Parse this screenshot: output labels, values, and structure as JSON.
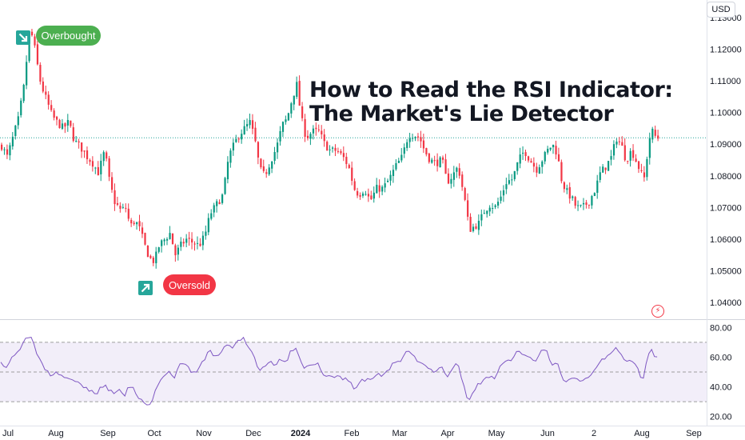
{
  "title": {
    "line1": "How to Read the RSI Indicator:",
    "line2": "The Market's Lie Detector"
  },
  "currency_label": "USD",
  "annotations": {
    "overbought": "Overbought",
    "oversold": "Oversold"
  },
  "colors": {
    "up": "#089981",
    "down": "#f23645",
    "rsi_line": "#7e57c2",
    "rsi_band": "#ede7f6",
    "overbought_badge": "#4caf50",
    "oversold_badge": "#f23645",
    "arrow_badge": "#26a69a",
    "last_price_line": "#26a69a"
  },
  "icons": {
    "overbought_arrow": "arrow-down-right-icon",
    "oversold_arrow": "arrow-up-right-icon",
    "logo": "lightning-logo-icon"
  },
  "chart_data": [
    {
      "type": "candlestick",
      "title": "",
      "xlabel": "",
      "ylabel": "",
      "ylim": [
        1.035,
        1.135
      ],
      "y_ticks": [
        "1.13000",
        "1.12000",
        "1.11000",
        "1.10000",
        "1.09000",
        "1.08000",
        "1.07000",
        "1.06000",
        "1.05000",
        "1.04000"
      ],
      "x_ticks": [
        {
          "label": "Jul",
          "bold": false
        },
        {
          "label": "Aug",
          "bold": false
        },
        {
          "label": "Sep",
          "bold": false
        },
        {
          "label": "Oct",
          "bold": false
        },
        {
          "label": "Nov",
          "bold": false
        },
        {
          "label": "Dec",
          "bold": false
        },
        {
          "label": "2024",
          "bold": true
        },
        {
          "label": "Feb",
          "bold": false
        },
        {
          "label": "Mar",
          "bold": false
        },
        {
          "label": "Apr",
          "bold": false
        },
        {
          "label": "May",
          "bold": false
        },
        {
          "label": "Jun",
          "bold": false
        },
        {
          "label": "2",
          "bold": false
        },
        {
          "label": "Aug",
          "bold": false
        },
        {
          "label": "Sep",
          "bold": false
        }
      ],
      "last_price": 1.092,
      "close_path": [
        [
          0,
          1.09
        ],
        [
          8,
          1.086
        ],
        [
          15,
          1.092
        ],
        [
          22,
          1.098
        ],
        [
          30,
          1.11
        ],
        [
          35,
          1.125
        ],
        [
          40,
          1.124
        ],
        [
          45,
          1.116
        ],
        [
          50,
          1.109
        ],
        [
          57,
          1.104
        ],
        [
          64,
          1.099
        ],
        [
          70,
          1.097
        ],
        [
          78,
          1.095
        ],
        [
          85,
          1.097
        ],
        [
          92,
          1.091
        ],
        [
          100,
          1.089
        ],
        [
          108,
          1.086
        ],
        [
          115,
          1.084
        ],
        [
          122,
          1.081
        ],
        [
          130,
          1.088
        ],
        [
          136,
          1.078
        ],
        [
          142,
          1.072
        ],
        [
          150,
          1.069
        ],
        [
          156,
          1.07
        ],
        [
          162,
          1.064
        ],
        [
          168,
          1.066
        ],
        [
          174,
          1.063
        ],
        [
          180,
          1.058
        ],
        [
          186,
          1.054
        ],
        [
          192,
          1.053
        ],
        [
          198,
          1.058
        ],
        [
          205,
          1.06
        ],
        [
          212,
          1.062
        ],
        [
          218,
          1.055
        ],
        [
          225,
          1.058
        ],
        [
          232,
          1.06
        ],
        [
          240,
          1.059
        ],
        [
          248,
          1.058
        ],
        [
          255,
          1.061
        ],
        [
          262,
          1.068
        ],
        [
          270,
          1.071
        ],
        [
          278,
          1.074
        ],
        [
          285,
          1.086
        ],
        [
          292,
          1.09
        ],
        [
          298,
          1.093
        ],
        [
          305,
          1.095
        ],
        [
          312,
          1.097
        ],
        [
          318,
          1.091
        ],
        [
          324,
          1.082
        ],
        [
          330,
          1.08
        ],
        [
          338,
          1.085
        ],
        [
          345,
          1.089
        ],
        [
          352,
          1.096
        ],
        [
          358,
          1.098
        ],
        [
          364,
          1.104
        ],
        [
          370,
          1.109
        ],
        [
          376,
          1.098
        ],
        [
          382,
          1.092
        ],
        [
          390,
          1.094
        ],
        [
          398,
          1.094
        ],
        [
          405,
          1.09
        ],
        [
          412,
          1.088
        ],
        [
          420,
          1.088
        ],
        [
          428,
          1.086
        ],
        [
          435,
          1.083
        ],
        [
          442,
          1.076
        ],
        [
          448,
          1.074
        ],
        [
          455,
          1.076
        ],
        [
          462,
          1.072
        ],
        [
          470,
          1.076
        ],
        [
          478,
          1.076
        ],
        [
          486,
          1.079
        ],
        [
          494,
          1.083
        ],
        [
          502,
          1.086
        ],
        [
          510,
          1.093
        ],
        [
          517,
          1.093
        ],
        [
          524,
          1.092
        ],
        [
          530,
          1.088
        ],
        [
          537,
          1.085
        ],
        [
          544,
          1.084
        ],
        [
          552,
          1.085
        ],
        [
          558,
          1.078
        ],
        [
          565,
          1.08
        ],
        [
          572,
          1.083
        ],
        [
          580,
          1.073
        ],
        [
          586,
          1.063
        ],
        [
          592,
          1.064
        ],
        [
          598,
          1.065
        ],
        [
          605,
          1.069
        ],
        [
          612,
          1.071
        ],
        [
          618,
          1.07
        ],
        [
          625,
          1.073
        ],
        [
          632,
          1.078
        ],
        [
          640,
          1.079
        ],
        [
          648,
          1.085
        ],
        [
          655,
          1.088
        ],
        [
          662,
          1.085
        ],
        [
          670,
          1.082
        ],
        [
          677,
          1.085
        ],
        [
          684,
          1.088
        ],
        [
          690,
          1.09
        ],
        [
          696,
          1.087
        ],
        [
          702,
          1.078
        ],
        [
          708,
          1.075
        ],
        [
          714,
          1.073
        ],
        [
          720,
          1.07
        ],
        [
          728,
          1.07
        ],
        [
          736,
          1.072
        ],
        [
          744,
          1.076
        ],
        [
          750,
          1.081
        ],
        [
          757,
          1.083
        ],
        [
          764,
          1.086
        ],
        [
          770,
          1.092
        ],
        [
          776,
          1.09
        ],
        [
          782,
          1.085
        ],
        [
          789,
          1.088
        ],
        [
          796,
          1.084
        ],
        [
          802,
          1.08
        ],
        [
          806,
          1.079
        ],
        [
          810,
          1.091
        ],
        [
          815,
          1.094
        ],
        [
          820,
          1.092
        ],
        [
          824,
          1.092
        ]
      ]
    },
    {
      "type": "line",
      "title": "",
      "ylabel": "",
      "ylim": [
        15,
        85
      ],
      "y_ticks": [
        "80.00",
        "60.00",
        "40.00",
        "20.00"
      ],
      "overbought_level": 70,
      "oversold_level": 30,
      "midline": 50,
      "rsi_path": [
        [
          0,
          59
        ],
        [
          8,
          52
        ],
        [
          15,
          60
        ],
        [
          22,
          63
        ],
        [
          30,
          71
        ],
        [
          35,
          74
        ],
        [
          40,
          74
        ],
        [
          45,
          63
        ],
        [
          50,
          58
        ],
        [
          57,
          51
        ],
        [
          64,
          47
        ],
        [
          70,
          49
        ],
        [
          78,
          47
        ],
        [
          85,
          45
        ],
        [
          92,
          46
        ],
        [
          100,
          41
        ],
        [
          108,
          40
        ],
        [
          115,
          37
        ],
        [
          122,
          36
        ],
        [
          130,
          42
        ],
        [
          136,
          38
        ],
        [
          142,
          35
        ],
        [
          150,
          37
        ],
        [
          156,
          35
        ],
        [
          162,
          40
        ],
        [
          168,
          38
        ],
        [
          174,
          33
        ],
        [
          180,
          31
        ],
        [
          186,
          26
        ],
        [
          192,
          34
        ],
        [
          198,
          42
        ],
        [
          205,
          46
        ],
        [
          212,
          52
        ],
        [
          218,
          46
        ],
        [
          225,
          54
        ],
        [
          232,
          56
        ],
        [
          240,
          49
        ],
        [
          248,
          52
        ],
        [
          255,
          58
        ],
        [
          262,
          64
        ],
        [
          270,
          61
        ],
        [
          278,
          64
        ],
        [
          285,
          69
        ],
        [
          292,
          67
        ],
        [
          298,
          70
        ],
        [
          305,
          72
        ],
        [
          312,
          66
        ],
        [
          318,
          60
        ],
        [
          324,
          50
        ],
        [
          330,
          54
        ],
        [
          338,
          58
        ],
        [
          345,
          54
        ],
        [
          352,
          59
        ],
        [
          358,
          57
        ],
        [
          364,
          65
        ],
        [
          370,
          66
        ],
        [
          376,
          59
        ],
        [
          382,
          52
        ],
        [
          390,
          55
        ],
        [
          398,
          55
        ],
        [
          405,
          49
        ],
        [
          412,
          47
        ],
        [
          420,
          47
        ],
        [
          428,
          46
        ],
        [
          435,
          45
        ],
        [
          442,
          40
        ],
        [
          448,
          41
        ],
        [
          455,
          45
        ],
        [
          462,
          44
        ],
        [
          470,
          48
        ],
        [
          478,
          48
        ],
        [
          486,
          52
        ],
        [
          494,
          56
        ],
        [
          502,
          56
        ],
        [
          510,
          67
        ],
        [
          517,
          60
        ],
        [
          524,
          58
        ],
        [
          530,
          54
        ],
        [
          537,
          52
        ],
        [
          544,
          48
        ],
        [
          552,
          53
        ],
        [
          558,
          47
        ],
        [
          565,
          51
        ],
        [
          572,
          56
        ],
        [
          580,
          40
        ],
        [
          586,
          31
        ],
        [
          592,
          37
        ],
        [
          598,
          41
        ],
        [
          605,
          44
        ],
        [
          612,
          47
        ],
        [
          618,
          46
        ],
        [
          625,
          53
        ],
        [
          632,
          57
        ],
        [
          640,
          58
        ],
        [
          648,
          65
        ],
        [
          655,
          61
        ],
        [
          662,
          59
        ],
        [
          670,
          57
        ],
        [
          677,
          63
        ],
        [
          684,
          64
        ],
        [
          690,
          55
        ],
        [
          696,
          58
        ],
        [
          702,
          47
        ],
        [
          708,
          42
        ],
        [
          714,
          46
        ],
        [
          720,
          45
        ],
        [
          728,
          43
        ],
        [
          736,
          47
        ],
        [
          744,
          52
        ],
        [
          750,
          57
        ],
        [
          757,
          60
        ],
        [
          764,
          64
        ],
        [
          770,
          67
        ],
        [
          776,
          64
        ],
        [
          782,
          55
        ],
        [
          789,
          58
        ],
        [
          796,
          54
        ],
        [
          802,
          46
        ],
        [
          806,
          45
        ],
        [
          810,
          62
        ],
        [
          815,
          64
        ],
        [
          820,
          61
        ],
        [
          824,
          61
        ]
      ]
    }
  ]
}
